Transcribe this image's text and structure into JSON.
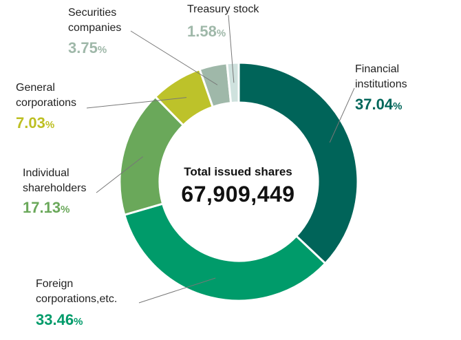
{
  "chart_data": {
    "type": "pie",
    "center_title": "Total issued shares",
    "center_value": "67,909,449",
    "percent_unit": "%",
    "categories": [
      "Financial institutions",
      "Foreign corporations,etc.",
      "Individual shareholders",
      "General corporations",
      "Securities companies",
      "Treasury stock"
    ],
    "label_lines": [
      [
        "Financial",
        "institutions"
      ],
      [
        "Foreign",
        "corporations,etc."
      ],
      [
        "Individual",
        "shareholders"
      ],
      [
        "General",
        "corporations"
      ],
      [
        "Securities",
        "companies"
      ],
      [
        "Treasury stock"
      ]
    ],
    "values": [
      37.04,
      33.46,
      17.13,
      7.03,
      3.75,
      1.58
    ],
    "value_labels": [
      "37.04",
      "33.46",
      "17.13",
      "7.03",
      "3.75",
      "1.58"
    ],
    "colors": [
      "#006459",
      "#009b6a",
      "#6aa85a",
      "#bdc22a",
      "#9fb8a9",
      "#cfe2de"
    ],
    "label_colors": [
      "#00665a",
      "#009b6a",
      "#6aa85a",
      "#bdbf22",
      "#9fb8a9",
      "#9fb8a9"
    ]
  }
}
